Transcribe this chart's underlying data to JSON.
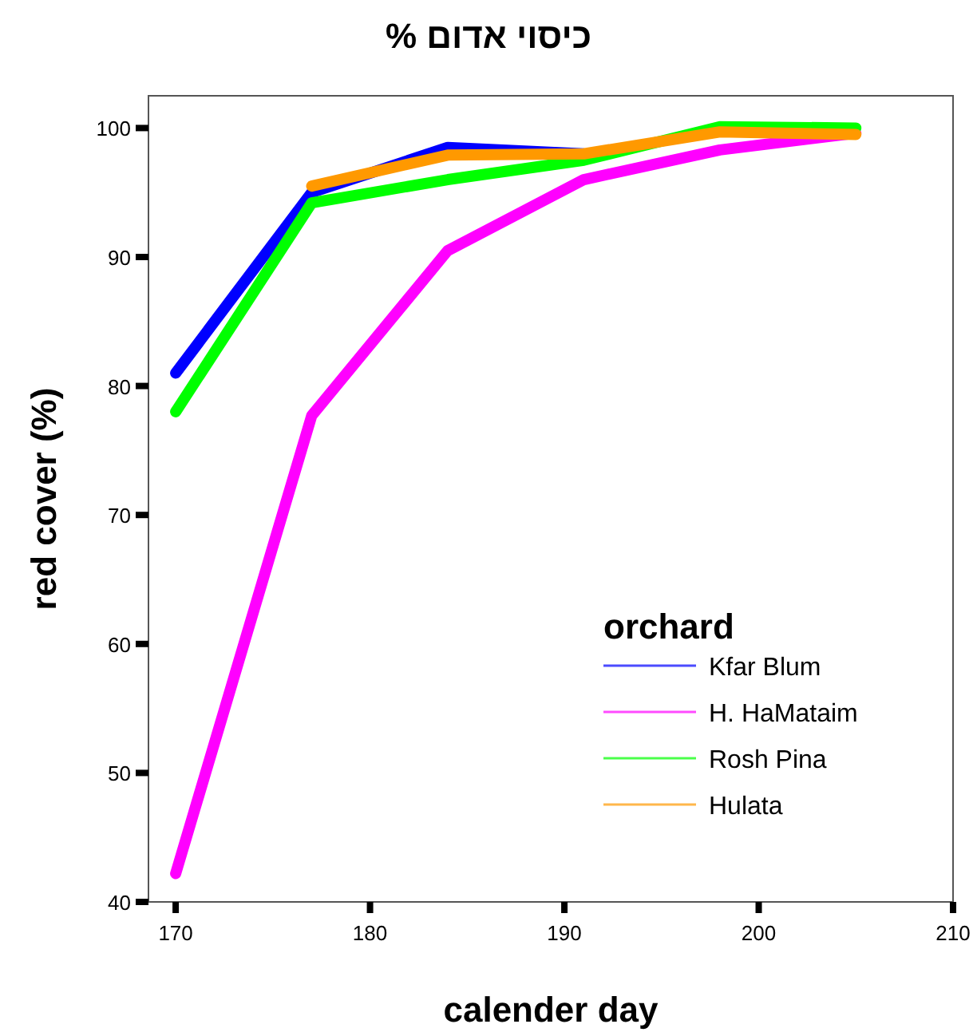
{
  "chart_data": {
    "type": "line",
    "title": "כיסוי אדום %",
    "xlabel": "calender day",
    "ylabel": "red cover (%)",
    "legend_title": "orchard",
    "legend": "bottom right",
    "grid": false,
    "x": [
      170,
      177,
      184,
      191,
      198,
      205
    ],
    "xlim": [
      168.6,
      210
    ],
    "xticks": [
      170,
      180,
      190,
      200,
      210
    ],
    "ylim": [
      40,
      102.5
    ],
    "yticks": [
      40,
      50,
      60,
      70,
      80,
      90,
      100
    ],
    "series": [
      {
        "name": "Kfar Blum",
        "color": "#0000ff",
        "values": [
          81,
          95,
          98.5,
          98,
          null,
          null
        ]
      },
      {
        "name": "H. HaMataim",
        "color": "#ff00ff",
        "values": [
          42.2,
          77.7,
          90.5,
          96,
          98.3,
          99.6
        ]
      },
      {
        "name": "Rosh Pina",
        "color": "#00ff00",
        "values": [
          78,
          94.2,
          96,
          97.5,
          100.1,
          100
        ]
      },
      {
        "name": "Hulata",
        "color": "#ff9900",
        "values": [
          null,
          95.5,
          97.9,
          98,
          99.7,
          99.5
        ]
      }
    ]
  }
}
